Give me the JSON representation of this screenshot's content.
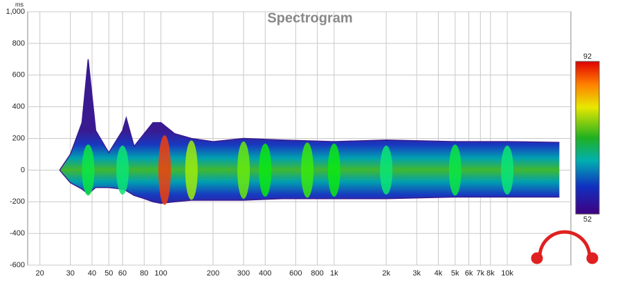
{
  "chart_data": {
    "type": "spectrogram",
    "title": "Spectrogram",
    "ylabel": "ms",
    "log_x": true,
    "grid": true,
    "xlim": [
      17,
      23300
    ],
    "ylim": [
      -600,
      1000
    ],
    "xticks": [
      20,
      30,
      40,
      50,
      60,
      80,
      100,
      200,
      300,
      400,
      600,
      800,
      {
        "value": 1000,
        "label": "1k"
      },
      {
        "value": 2000,
        "label": "2k"
      },
      {
        "value": 3000,
        "label": "3k"
      },
      {
        "value": 4000,
        "label": "4k"
      },
      {
        "value": 5000,
        "label": "5k"
      },
      {
        "value": 6000,
        "label": "6k"
      },
      {
        "value": 7000,
        "label": "7k"
      },
      {
        "value": 8000,
        "label": "8k"
      },
      {
        "value": 10000,
        "label": "10k"
      }
    ],
    "yticks": [
      {
        "value": 1000,
        "label": "1,000"
      },
      800,
      600,
      400,
      200,
      0,
      -200,
      -400,
      -600
    ],
    "x": [
      26,
      30,
      35,
      38,
      42,
      50,
      60,
      63,
      70,
      80,
      90,
      100,
      120,
      150,
      200,
      300,
      500,
      1000,
      2000,
      5000,
      10000,
      20000
    ],
    "upper": [
      0,
      100,
      300,
      700,
      250,
      110,
      250,
      330,
      150,
      230,
      300,
      300,
      230,
      200,
      180,
      200,
      190,
      180,
      190,
      180,
      180,
      175
    ],
    "lower": [
      0,
      -80,
      -120,
      -150,
      -110,
      -110,
      -120,
      -130,
      -160,
      -180,
      -200,
      -210,
      -200,
      -190,
      -190,
      -190,
      -180,
      -180,
      -180,
      -170,
      -170,
      -170
    ],
    "peaks": {
      "x": [
        38,
        60,
        105,
        150,
        300,
        400,
        700,
        1000,
        2000,
        5000,
        10000
      ],
      "values": [
        72,
        70,
        90,
        80,
        78,
        74,
        76,
        74,
        70,
        72,
        70
      ]
    },
    "colorbar": {
      "lim": [
        52,
        92
      ],
      "ticks": [
        52,
        92
      ]
    }
  }
}
